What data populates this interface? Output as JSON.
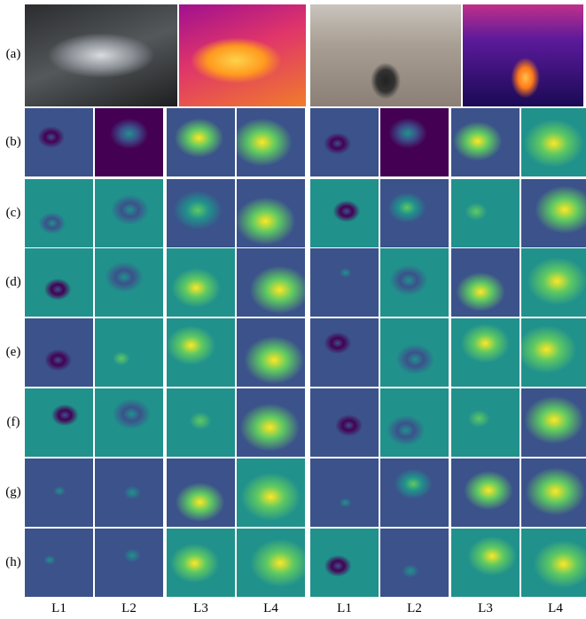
{
  "row_labels": [
    "(a)",
    "(b)",
    "(c)",
    "(d)",
    "(e)",
    "(f)",
    "(g)",
    "(h)"
  ],
  "column_labels": [
    "L1",
    "L2",
    "L3",
    "L4",
    "L1",
    "L2",
    "L3",
    "L4"
  ]
}
